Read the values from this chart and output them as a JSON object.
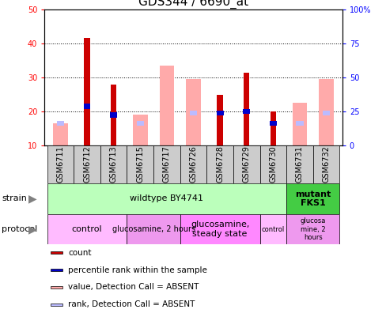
{
  "title": "GDS344 / 6690_at",
  "samples": [
    "GSM6711",
    "GSM6712",
    "GSM6713",
    "GSM6715",
    "GSM6717",
    "GSM6726",
    "GSM6728",
    "GSM6729",
    "GSM6730",
    "GSM6731",
    "GSM6732"
  ],
  "count_values": [
    0,
    41.5,
    28,
    0,
    0,
    0,
    25,
    31.5,
    20,
    0,
    0
  ],
  "percentile_values": [
    0,
    21.5,
    19,
    0,
    0,
    0,
    19.5,
    20,
    16.5,
    0,
    0
  ],
  "absent_value_values": [
    16.5,
    0,
    0,
    19,
    33.5,
    29.5,
    0,
    0,
    0,
    22.5,
    29.5
  ],
  "absent_rank_values": [
    16.5,
    0,
    0,
    16.5,
    0,
    19.5,
    0,
    0,
    0,
    16.5,
    19.5
  ],
  "ylim_left": [
    10,
    50
  ],
  "ylim_right": [
    0,
    100
  ],
  "yticks_left": [
    10,
    20,
    30,
    40,
    50
  ],
  "yticks_right": [
    0,
    25,
    50,
    75,
    100
  ],
  "strain_wildtype": {
    "label": "wildtype BY4741",
    "start": 0,
    "end": 9,
    "color": "#bbffbb"
  },
  "strain_mutant": {
    "label": "mutant\nFKS1",
    "start": 9,
    "end": 11,
    "color": "#44cc44"
  },
  "protocols": [
    {
      "label": "control",
      "start": 0,
      "end": 3,
      "color": "#ffbbff",
      "fontsize": 8
    },
    {
      "label": "glucosamine, 2 hours",
      "start": 3,
      "end": 5,
      "color": "#ee99ee",
      "fontsize": 7
    },
    {
      "label": "glucosamine,\nsteady state",
      "start": 5,
      "end": 8,
      "color": "#ff88ff",
      "fontsize": 8
    },
    {
      "label": "control",
      "start": 8,
      "end": 9,
      "color": "#ffbbff",
      "fontsize": 6
    },
    {
      "label": "glucosa\nmine, 2\nhours",
      "start": 9,
      "end": 11,
      "color": "#ee99ee",
      "fontsize": 6
    }
  ],
  "count_color": "#cc0000",
  "percentile_color": "#0000cc",
  "absent_value_color": "#ffaaaa",
  "absent_rank_color": "#bbbbff",
  "grid_color": "#000000",
  "background_color": "#ffffff",
  "ax_bg_color": "#ffffff",
  "title_fontsize": 11,
  "tick_fontsize": 7,
  "label_fontsize": 8,
  "xtick_bg_color": "#cccccc"
}
